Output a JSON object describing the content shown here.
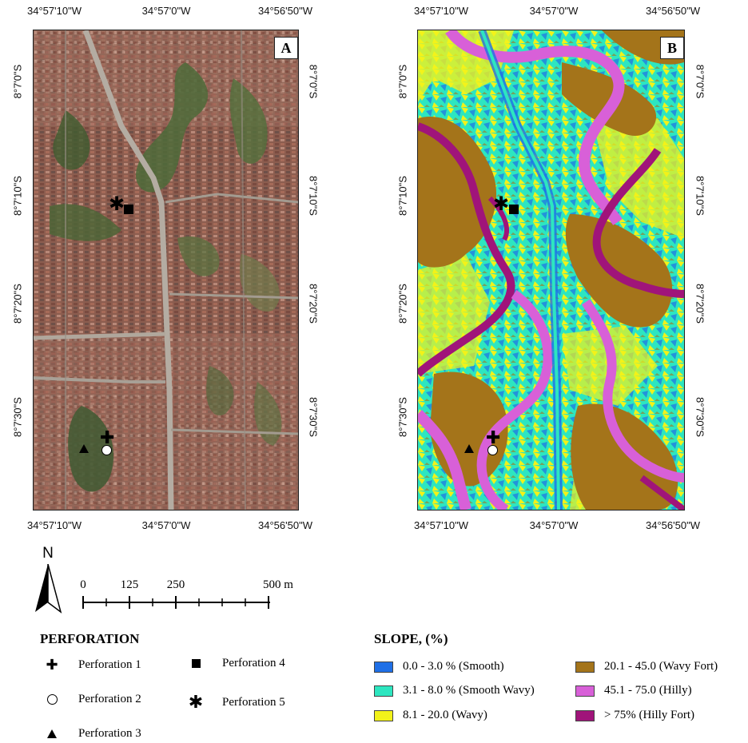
{
  "panel_a": {
    "letter": "A",
    "lon_labels": [
      "34°57'10\"W",
      "34°57'0\"W",
      "34°56'50\"W"
    ],
    "lat_labels": [
      "8°7'0\"S",
      "8°7'10\"S",
      "8°7'20\"S",
      "8°7'30\"S"
    ]
  },
  "panel_b": {
    "letter": "B",
    "lon_labels": [
      "34°57'10\"W",
      "34°57'0\"W",
      "34°56'50\"W"
    ],
    "lat_labels": [
      "8°7'0\"S",
      "8°7'10\"S",
      "8°7'20\"S",
      "8°7'30\"S"
    ]
  },
  "north_arrow": {
    "label": "N"
  },
  "scale_bar": {
    "labels": [
      "0",
      "125",
      "250",
      "500 m"
    ]
  },
  "perforation_legend": {
    "title": "PERFORATION",
    "items": [
      {
        "label": "Perforation 1",
        "icon": "plus-icon"
      },
      {
        "label": "Perforation 2",
        "icon": "circle-icon"
      },
      {
        "label": "Perforation 3",
        "icon": "triangle-icon"
      },
      {
        "label": "Perforation 4",
        "icon": "square-icon"
      },
      {
        "label": "Perforation 5",
        "icon": "asterisk-icon"
      }
    ]
  },
  "slope_legend": {
    "title": "SLOPE, (%)",
    "items": [
      {
        "label": "0.0 - 3.0 % (Smooth)",
        "color": "#1f6fe6"
      },
      {
        "label": "3.1 - 8.0 % (Smooth Wavy)",
        "color": "#2de6c0"
      },
      {
        "label": "8.1 - 20.0 (Wavy)",
        "color": "#f2f21a"
      },
      {
        "label": "20.1 - 45.0 (Wavy Fort)",
        "color": "#a4741a"
      },
      {
        "label": "45.1 - 75.0 (Hilly)",
        "color": "#d860d8"
      },
      {
        "label": "> 75% (Hilly Fort)",
        "color": "#a0147a"
      }
    ]
  }
}
